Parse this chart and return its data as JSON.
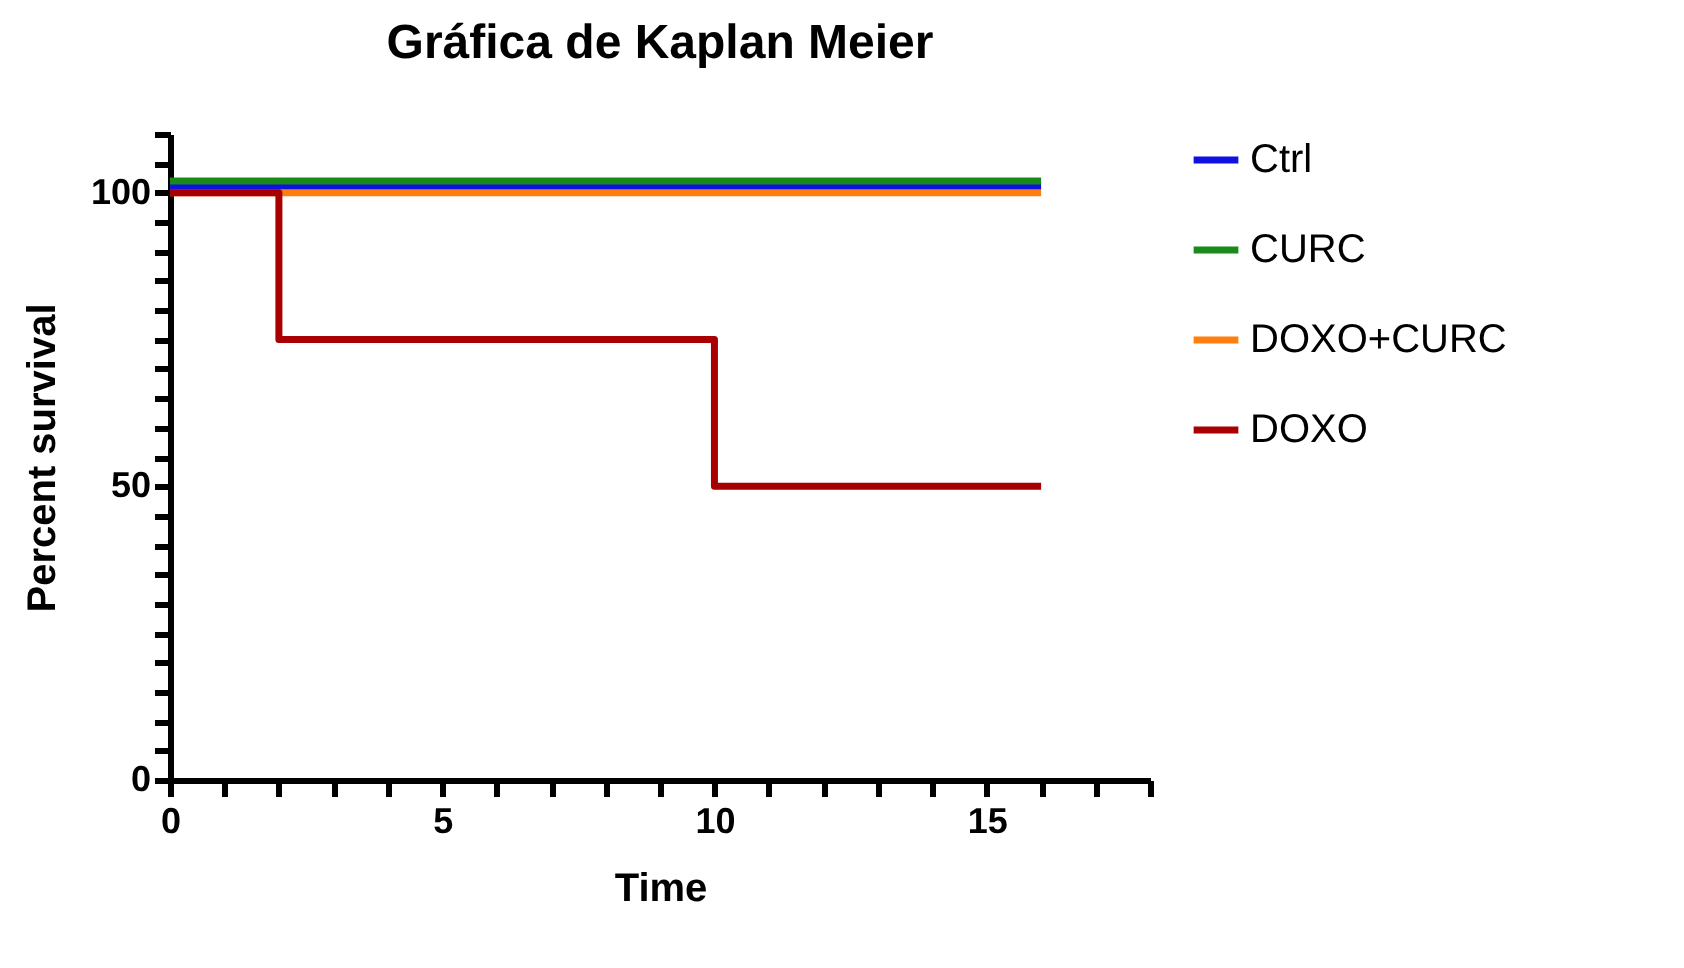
{
  "chart_data": {
    "type": "step",
    "title": "Gráfica de Kaplan Meier",
    "xlabel": "Time",
    "ylabel": "Percent survival",
    "xlim": [
      0,
      18
    ],
    "ylim": [
      0,
      110
    ],
    "xticks": [
      0,
      {
        "value": 1,
        "label": null
      },
      {
        "value": 2,
        "label": null
      },
      {
        "value": 3,
        "label": null
      },
      {
        "value": 4,
        "label": null
      },
      5,
      {
        "value": 6,
        "label": null
      },
      {
        "value": 7,
        "label": null
      },
      {
        "value": 8,
        "label": null
      },
      {
        "value": 9,
        "label": null
      },
      10,
      {
        "value": 11,
        "label": null
      },
      {
        "value": 12,
        "label": null
      },
      {
        "value": 13,
        "label": null
      },
      {
        "value": 14,
        "label": null
      },
      15,
      {
        "value": 16,
        "label": null
      },
      {
        "value": 17,
        "label": null
      },
      {
        "value": 18,
        "label": null
      }
    ],
    "yticks": [
      0,
      {
        "value": 5,
        "label": null
      },
      {
        "value": 10,
        "label": null
      },
      {
        "value": 15,
        "label": null
      },
      {
        "value": 20,
        "label": null
      },
      {
        "value": 25,
        "label": null
      },
      {
        "value": 30,
        "label": null
      },
      {
        "value": 35,
        "label": null
      },
      {
        "value": 40,
        "label": null
      },
      {
        "value": 45,
        "label": null
      },
      50,
      {
        "value": 55,
        "label": null
      },
      {
        "value": 60,
        "label": null
      },
      {
        "value": 65,
        "label": null
      },
      {
        "value": 70,
        "label": null
      },
      {
        "value": 75,
        "label": null
      },
      {
        "value": 80,
        "label": null
      },
      {
        "value": 85,
        "label": null
      },
      {
        "value": 90,
        "label": null
      },
      {
        "value": 95,
        "label": null
      },
      100,
      {
        "value": 105,
        "label": null
      },
      {
        "value": 110,
        "label": null
      }
    ],
    "grid": false,
    "legend": "top right",
    "series": [
      {
        "name": "Ctrl",
        "color": "#1010e0",
        "x": [
          0,
          16
        ],
        "values": [
          101,
          101
        ]
      },
      {
        "name": "CURC",
        "color": "#1a8a1a",
        "x": [
          0,
          16
        ],
        "values": [
          102,
          102
        ]
      },
      {
        "name": "DOXO+CURC",
        "color": "#ff7f0e",
        "x": [
          0,
          16
        ],
        "values": [
          100,
          100
        ]
      },
      {
        "name": "DOXO",
        "color": "#a80000",
        "x": [
          0,
          2,
          10,
          16
        ],
        "values": [
          100,
          75,
          50,
          50
        ]
      }
    ]
  }
}
